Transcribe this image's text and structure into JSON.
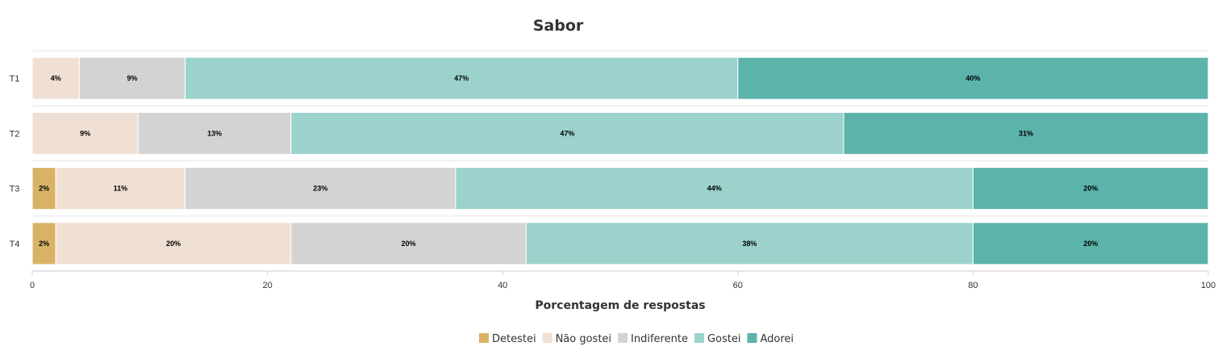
{
  "chart_data": {
    "type": "bar",
    "orientation": "horizontal",
    "stacked": true,
    "title": "Sabor",
    "xlabel": "Porcentagem de respostas",
    "ylabel": "",
    "xlim": [
      0,
      100
    ],
    "x_ticks": [
      "0",
      "20",
      "40",
      "60",
      "80",
      "100"
    ],
    "categories": [
      "T1",
      "T2",
      "T3",
      "T4"
    ],
    "series": [
      {
        "name": "Detestei",
        "color": "#d9b365",
        "values": [
          0,
          0,
          2,
          2
        ],
        "labels": [
          "",
          "",
          "2%",
          "2%"
        ]
      },
      {
        "name": "Não gostei",
        "color": "#f0e0d3",
        "values": [
          4,
          9,
          11,
          20
        ],
        "labels": [
          "4%",
          "9%",
          "11%",
          "20%"
        ]
      },
      {
        "name": "Indiferente",
        "color": "#d3d3d3",
        "values": [
          9,
          13,
          23,
          20
        ],
        "labels": [
          "9%",
          "13%",
          "23%",
          "20%"
        ]
      },
      {
        "name": "Gostei",
        "color": "#9bd2cc",
        "values": [
          47,
          47,
          44,
          38
        ],
        "labels": [
          "47%",
          "47%",
          "44%",
          "38%"
        ]
      },
      {
        "name": "Adorei",
        "color": "#5cb3aa",
        "values": [
          40,
          31,
          20,
          20
        ],
        "labels": [
          "40%",
          "31%",
          "20%",
          "20%"
        ]
      }
    ],
    "legend": "bottom-center",
    "grid": false
  }
}
